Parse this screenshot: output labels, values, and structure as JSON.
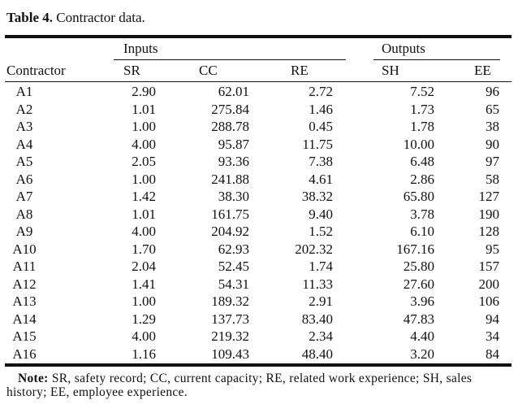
{
  "title_label": "Table 4.",
  "title_text": "Contractor data.",
  "groups": {
    "inputs": "Inputs",
    "outputs": "Outputs"
  },
  "columns": [
    "Contractor",
    "SR",
    "CC",
    "RE",
    "SH",
    "EE"
  ],
  "rows": [
    [
      "A1",
      "2.90",
      "62.01",
      "2.72",
      "7.52",
      "96"
    ],
    [
      "A2",
      "1.01",
      "275.84",
      "1.46",
      "1.73",
      "65"
    ],
    [
      "A3",
      "1.00",
      "288.78",
      "0.45",
      "1.78",
      "38"
    ],
    [
      "A4",
      "4.00",
      "95.87",
      "11.75",
      "10.00",
      "90"
    ],
    [
      "A5",
      "2.05",
      "93.36",
      "7.38",
      "6.48",
      "97"
    ],
    [
      "A6",
      "1.00",
      "241.88",
      "4.61",
      "2.86",
      "58"
    ],
    [
      "A7",
      "1.42",
      "38.30",
      "38.32",
      "65.80",
      "127"
    ],
    [
      "A8",
      "1.01",
      "161.75",
      "9.40",
      "3.78",
      "190"
    ],
    [
      "A9",
      "4.00",
      "204.92",
      "1.52",
      "6.10",
      "128"
    ],
    [
      "A10",
      "1.70",
      "62.93",
      "202.32",
      "167.16",
      "95"
    ],
    [
      "A11",
      "2.04",
      "52.45",
      "1.74",
      "25.80",
      "157"
    ],
    [
      "A12",
      "1.41",
      "54.31",
      "11.33",
      "27.60",
      "200"
    ],
    [
      "A13",
      "1.00",
      "189.32",
      "2.91",
      "3.96",
      "106"
    ],
    [
      "A14",
      "1.29",
      "137.73",
      "83.40",
      "47.83",
      "94"
    ],
    [
      "A15",
      "4.00",
      "219.32",
      "2.34",
      "4.40",
      "34"
    ],
    [
      "A16",
      "1.16",
      "109.43",
      "48.40",
      "3.20",
      "84"
    ]
  ],
  "note_label": "Note:",
  "note_text": "SR, safety record; CC, current capacity; RE, related work experience; SH, sales history; EE, employee experience."
}
